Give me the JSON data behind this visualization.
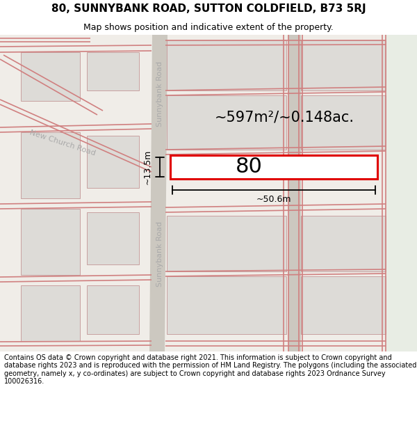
{
  "title": "80, SUNNYBANK ROAD, SUTTON COLDFIELD, B73 5RJ",
  "subtitle": "Map shows position and indicative extent of the property.",
  "footer": "Contains OS data © Crown copyright and database right 2021. This information is subject to Crown copyright and database rights 2023 and is reproduced with the permission of HM Land Registry. The polygons (including the associated geometry, namely x, y co-ordinates) are subject to Crown copyright and database rights 2023 Ordnance Survey 100026316.",
  "area_label": "~597m²/~0.148ac.",
  "width_label": "~50.6m",
  "height_label": "~13.5m",
  "property_number": "80",
  "bg_color": "#ffffff",
  "map_bg_main": "#f0ede8",
  "map_bg_right": "#e8ede4",
  "road_strip_color": "#d8d4ce",
  "plot_fill": "#dddbd7",
  "plot_edge": "#c8a8a8",
  "road_line_color": "#d08080",
  "property_fill": "#ffffff",
  "property_border": "#e00000",
  "road_label_color": "#aaaaaa",
  "title_fontsize": 11,
  "subtitle_fontsize": 9,
  "footer_fontsize": 7,
  "area_fontsize": 15,
  "number_fontsize": 22,
  "meas_fontsize": 9,
  "road_label_fontsize": 8
}
